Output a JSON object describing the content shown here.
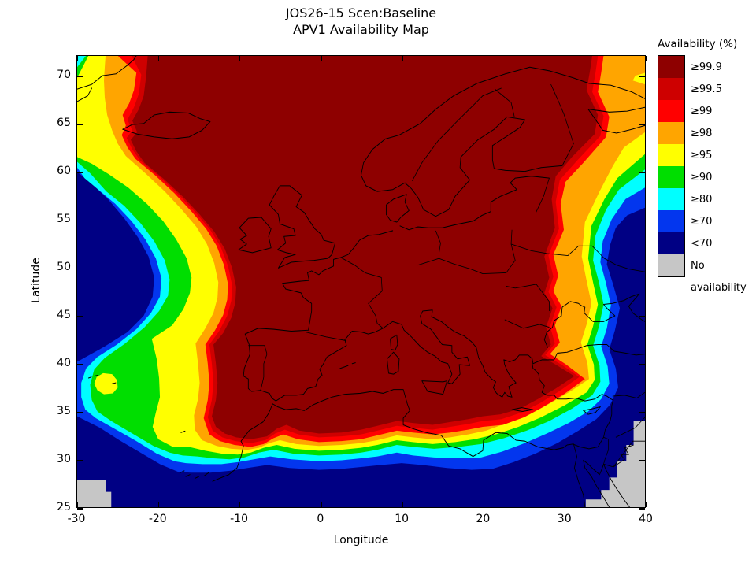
{
  "title": {
    "line1": "JOS26-15 Scen:Baseline",
    "line2": "APV1 Availability Map"
  },
  "axes": {
    "x_label": "Longitude",
    "y_label": "Latitude",
    "x_ticks": [
      "-30",
      "-20",
      "-10",
      "0",
      "10",
      "20",
      "30",
      "40"
    ],
    "y_ticks": [
      "25",
      "30",
      "35",
      "40",
      "45",
      "50",
      "55",
      "60",
      "65",
      "70"
    ],
    "x_range": [
      -30,
      40
    ],
    "y_range": [
      25,
      72.17
    ]
  },
  "legend": {
    "title": "Availability (%)",
    "entries": [
      {
        "label": "≥99.9",
        "color": "#8E0000"
      },
      {
        "label": "≥99.5",
        "color": "#CE0000"
      },
      {
        "label": "≥99",
        "color": "#FF0000"
      },
      {
        "label": "≥98",
        "color": "#FFA500"
      },
      {
        "label": "≥95",
        "color": "#FFFF00"
      },
      {
        "label": "≥90",
        "color": "#00DE00"
      },
      {
        "label": "≥80",
        "color": "#00FFFF"
      },
      {
        "label": "≥70",
        "color": "#0336EE"
      },
      {
        "label": "<70",
        "color": "#000084"
      },
      {
        "label": "No availability",
        "color": "#C6C6C6"
      }
    ]
  }
}
